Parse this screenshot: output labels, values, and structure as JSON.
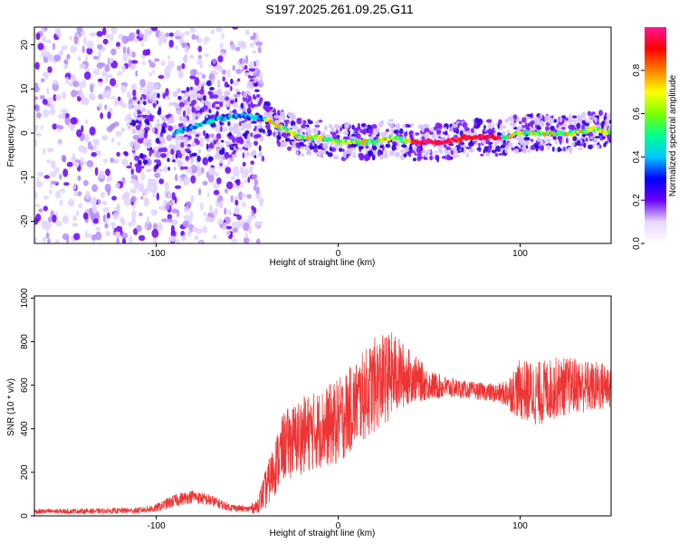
{
  "title": "S197.2025.261.09.25.G11",
  "chart_data": [
    {
      "type": "heatmap",
      "name": "spectrogram",
      "xlabel": "Height of straight line (km)",
      "ylabel": "Frequency (Hz)",
      "xlim": [
        -167,
        150
      ],
      "ylim": [
        -25,
        24
      ],
      "xticks": [
        -100,
        0,
        100
      ],
      "yticks": [
        -20,
        -10,
        0,
        10,
        20
      ],
      "colorbar": {
        "label": "Normalized spectral amplitude",
        "range": [
          0,
          1
        ],
        "ticks": [
          0.0,
          0.2,
          0.4,
          0.6,
          0.8
        ],
        "tick_labels": [
          "0.0",
          "0.2",
          "0.4",
          "0.6",
          "0.8"
        ],
        "colors": [
          "#ffffff",
          "#e6d6ff",
          "#6a00ff",
          "#0000ff",
          "#00c8ff",
          "#00ff90",
          "#7cff00",
          "#ffff00",
          "#ff8000",
          "#ff0000",
          "#ff1493"
        ]
      },
      "ridge": {
        "x": [
          -110,
          -90,
          -70,
          -50,
          -40,
          -30,
          -20,
          -10,
          0,
          10,
          20,
          30,
          40,
          50,
          60,
          70,
          80,
          90,
          100,
          110,
          120,
          130,
          140,
          150
        ],
        "freq": [
          0,
          0,
          3,
          4,
          3,
          1,
          -1,
          -1,
          -2,
          -2,
          -2,
          -1,
          -2,
          -2,
          -2,
          -1,
          -1,
          -1,
          0,
          0,
          0,
          0,
          1,
          0
        ]
      }
    },
    {
      "type": "line",
      "name": "snr",
      "xlabel": "Height of straight line (km)",
      "ylabel": "SNR (10 * v/v)",
      "xlim": [
        -167,
        150
      ],
      "ylim": [
        0,
        1010
      ],
      "xticks": [
        -100,
        0,
        100
      ],
      "yticks": [
        0,
        200,
        400,
        600,
        800,
        1000
      ],
      "color": "#ee3333",
      "envelope": {
        "x": [
          -167,
          -130,
          -110,
          -100,
          -90,
          -80,
          -70,
          -60,
          -50,
          -45,
          -40,
          -35,
          -30,
          -20,
          -10,
          0,
          10,
          20,
          30,
          40,
          50,
          60,
          70,
          80,
          90,
          100,
          110,
          120,
          130,
          140,
          150
        ],
        "mean": [
          20,
          22,
          25,
          35,
          70,
          90,
          70,
          40,
          30,
          40,
          120,
          220,
          320,
          370,
          400,
          430,
          520,
          600,
          650,
          640,
          600,
          590,
          580,
          570,
          560,
          580,
          560,
          590,
          600,
          590,
          600
        ],
        "spread": [
          12,
          12,
          14,
          20,
          30,
          30,
          28,
          18,
          15,
          30,
          90,
          130,
          160,
          180,
          180,
          200,
          200,
          220,
          200,
          120,
          70,
          50,
          40,
          40,
          50,
          140,
          150,
          140,
          130,
          120,
          110
        ]
      }
    }
  ]
}
